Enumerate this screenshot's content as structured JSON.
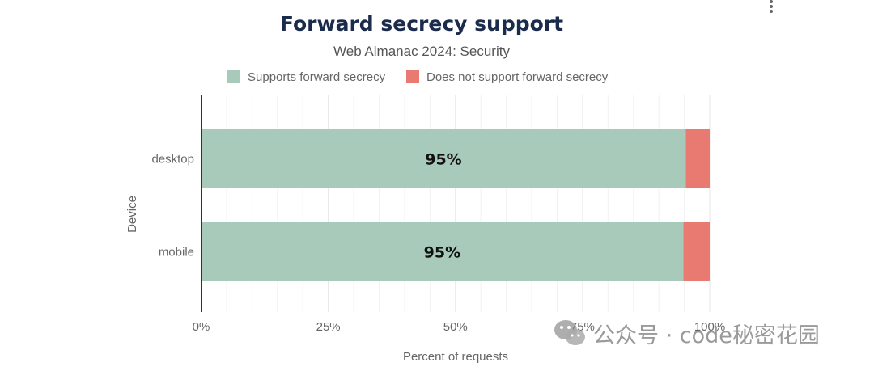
{
  "chart_data": {
    "type": "bar",
    "orientation": "horizontal",
    "stacked": true,
    "title": "Forward secrecy support",
    "subtitle": "Web Almanac 2024: Security",
    "xlabel": "Percent of requests",
    "ylabel": "Device",
    "categories": [
      "desktop",
      "mobile"
    ],
    "series": [
      {
        "name": "Supports forward secrecy",
        "color": "#a8cabb",
        "values": [
          95.3,
          94.8
        ],
        "data_labels": [
          "95%",
          "95%"
        ]
      },
      {
        "name": "Does not support forward secrecy",
        "color": "#e87a72",
        "values": [
          4.7,
          5.2
        ]
      }
    ],
    "xlim": [
      0,
      100
    ],
    "xticks": [
      0,
      25,
      50,
      75,
      100
    ],
    "xtick_labels": [
      "0%",
      "25%",
      "50%",
      "75%",
      "100%"
    ],
    "grid": true,
    "legend_position": "top"
  },
  "watermark": {
    "text": "公众号 · code秘密花园",
    "icon": "wechat-icon"
  },
  "menu": {
    "icon": "more-vertical-icon"
  }
}
